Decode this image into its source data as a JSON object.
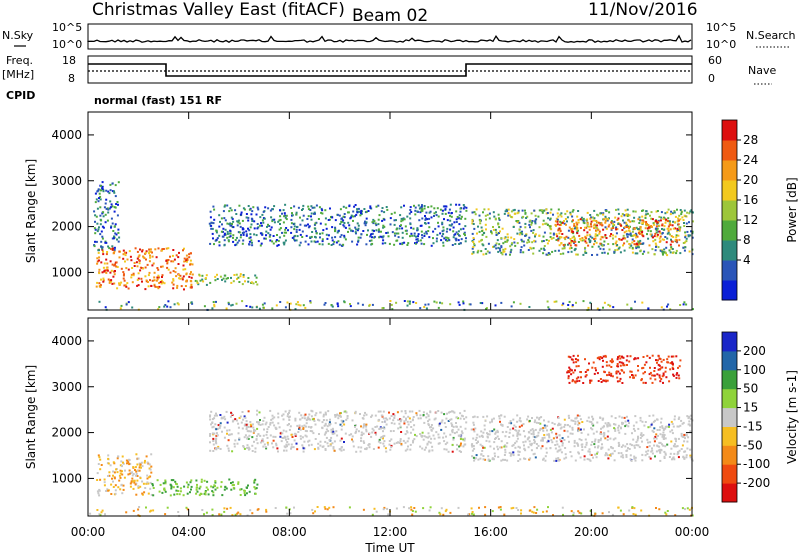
{
  "header": {
    "title": "Christmas Valley East (fitACF)",
    "beam": "Beam 02",
    "date": "11/Nov/2016"
  },
  "top_panels": {
    "nsky_label": "N.Sky",
    "nsearch_label": "N.Search",
    "noise_ticks": [
      "10^5",
      "10^0"
    ],
    "freq_label_1": "Freq.",
    "freq_label_2": "[MHz]",
    "freq_ticks": [
      "18",
      "8"
    ],
    "nave_label": "Nave",
    "nave_ticks": [
      "60",
      "0"
    ],
    "cpid_label": "CPID",
    "cpid_text": "normal (fast) 151 RF"
  },
  "chart_data": [
    {
      "type": "heatmap",
      "name": "power-panel",
      "ylabel": "Slant Range [km]",
      "xlabel": "",
      "x_ticks": [
        "00:00",
        "04:00",
        "08:00",
        "12:00",
        "16:00",
        "20:00",
        "00:00"
      ],
      "y_ticks": [
        1000,
        2000,
        3000,
        4000
      ],
      "xlim": [
        0,
        24
      ],
      "ylim": [
        180,
        4500
      ],
      "colorbar": {
        "label": "Power [dB]",
        "ticks": [
          "28",
          "24",
          "20",
          "16",
          "12",
          "8",
          "4"
        ],
        "colors": [
          "#0a1fd6",
          "#2a55b8",
          "#2e8a7c",
          "#4faa3c",
          "#9dc63a",
          "#f2c91e",
          "#f59a18",
          "#ef5a12",
          "#dd0f0f"
        ],
        "range": [
          0,
          30
        ]
      },
      "regions": [
        {
          "t0": 0.3,
          "t1": 4.2,
          "r0": 650,
          "r1": 1550,
          "level": "high"
        },
        {
          "t0": 4.2,
          "t1": 6.7,
          "r0": 750,
          "r1": 1000,
          "level": "mid"
        },
        {
          "t0": 0.2,
          "t1": 1.2,
          "r0": 1500,
          "r1": 3000,
          "level": "low"
        },
        {
          "t0": 4.8,
          "t1": 15.0,
          "r0": 1600,
          "r1": 2500,
          "level": "low"
        },
        {
          "t0": 15.2,
          "t1": 24.0,
          "r0": 1400,
          "r1": 2400,
          "level": "mixed"
        },
        {
          "t0": 18.5,
          "t1": 23.5,
          "r0": 1600,
          "r1": 2200,
          "level": "high"
        },
        {
          "t0": 0.0,
          "t1": 24.0,
          "r0": 200,
          "r1": 400,
          "level": "scatter"
        }
      ]
    },
    {
      "type": "heatmap",
      "name": "velocity-panel",
      "ylabel": "Slant Range [km]",
      "xlabel": "Time UT",
      "x_ticks": [
        "00:00",
        "04:00",
        "08:00",
        "12:00",
        "16:00",
        "20:00",
        "00:00"
      ],
      "y_ticks": [
        1000,
        2000,
        3000,
        4000
      ],
      "xlim": [
        0,
        24
      ],
      "ylim": [
        180,
        4500
      ],
      "colorbar": {
        "label": "Velocity [m s-1]",
        "ticks": [
          "200",
          "100",
          "50",
          "15",
          "-15",
          "-50",
          "-100",
          "-200"
        ],
        "colors": [
          "#dd0f0f",
          "#ef4a10",
          "#f38a18",
          "#f6be22",
          "#c8c8c8",
          "#8fd33a",
          "#3aa03a",
          "#2266a8",
          "#1a26c8"
        ],
        "range": [
          -250,
          250
        ]
      },
      "regions": [
        {
          "t0": 0.3,
          "t1": 2.5,
          "r0": 650,
          "r1": 1550,
          "level": "orange"
        },
        {
          "t0": 2.5,
          "t1": 6.7,
          "r0": 650,
          "r1": 1000,
          "level": "green"
        },
        {
          "t0": 4.8,
          "t1": 15.0,
          "r0": 1600,
          "r1": 2500,
          "level": "grey"
        },
        {
          "t0": 15.2,
          "t1": 24.0,
          "r0": 1400,
          "r1": 2400,
          "level": "grey"
        },
        {
          "t0": 19.0,
          "t1": 23.5,
          "r0": 3100,
          "r1": 3700,
          "level": "red"
        },
        {
          "t0": 0.0,
          "t1": 24.0,
          "r0": 200,
          "r1": 400,
          "level": "scatter"
        }
      ]
    }
  ]
}
